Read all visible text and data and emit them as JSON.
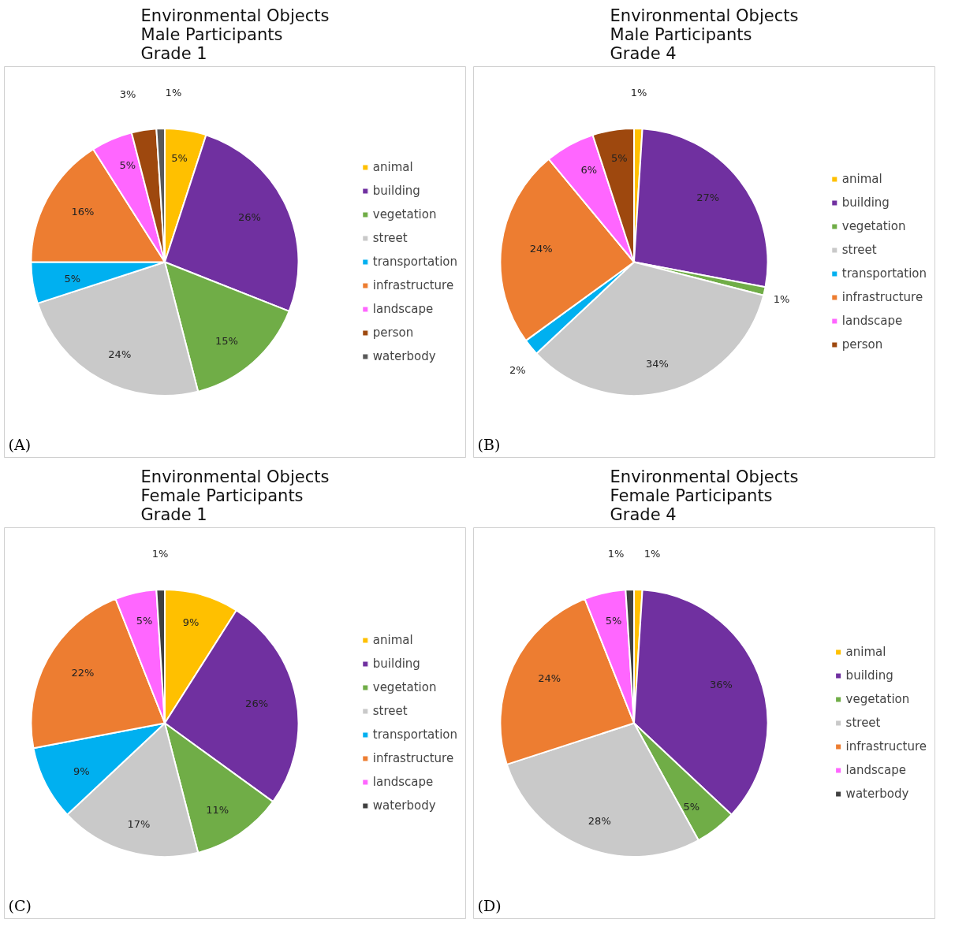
{
  "chart_data": [
    {
      "type": "pie",
      "title": "Environmental Objects\nMale Participants\nGrade 1",
      "categories": [
        "animal",
        "building",
        "vegetation",
        "street",
        "transportation",
        "infrastructure",
        "landscape",
        "person",
        "waterbody"
      ],
      "values": [
        5,
        26,
        15,
        24,
        5,
        16,
        5,
        3,
        1
      ],
      "colors": [
        "#ffc000",
        "#7030a0",
        "#70ad47",
        "#c9c9c9",
        "#00b0f0",
        "#ed7d31",
        "#ff66ff",
        "#9e480e",
        "#595959"
      ],
      "value_labels": [
        "5%",
        "26%",
        "15%",
        "24%",
        "5%",
        "16%",
        "5%",
        "3%",
        "1%"
      ],
      "legend": "right",
      "annotations": [
        "(A)"
      ]
    },
    {
      "type": "pie",
      "title": "Environmental Objects\nMale Participants\nGrade 4",
      "categories": [
        "animal",
        "building",
        "vegetation",
        "street",
        "transportation",
        "infrastructure",
        "landscape",
        "person"
      ],
      "values": [
        1,
        27,
        1,
        34,
        2,
        24,
        6,
        5
      ],
      "colors": [
        "#ffc000",
        "#7030a0",
        "#70ad47",
        "#c9c9c9",
        "#00b0f0",
        "#ed7d31",
        "#ff66ff",
        "#9e480e"
      ],
      "value_labels": [
        "1%",
        "27%",
        "1%",
        "34%",
        "2%",
        "24%",
        "6%",
        "5%"
      ],
      "legend": "right",
      "annotations": [
        "(B)"
      ]
    },
    {
      "type": "pie",
      "title": "Environmental Objects\nFemale Participants\nGrade 1",
      "categories": [
        "animal",
        "building",
        "vegetation",
        "street",
        "transportation",
        "infrastructure",
        "landscape",
        "waterbody"
      ],
      "values": [
        9,
        26,
        11,
        17,
        9,
        22,
        5,
        1
      ],
      "colors": [
        "#ffc000",
        "#7030a0",
        "#70ad47",
        "#c9c9c9",
        "#00b0f0",
        "#ed7d31",
        "#ff66ff",
        "#404040"
      ],
      "value_labels": [
        "9%",
        "26%",
        "11%",
        "17%",
        "9%",
        "22%",
        "5%",
        "1%"
      ],
      "legend": "right",
      "annotations": [
        "(C)"
      ]
    },
    {
      "type": "pie",
      "title": "Environmental Objects\nFemale Participants\nGrade 4",
      "categories": [
        "animal",
        "building",
        "vegetation",
        "street",
        "infrastructure",
        "landscape",
        "waterbody"
      ],
      "values": [
        1,
        36,
        5,
        28,
        24,
        5,
        1
      ],
      "colors": [
        "#ffc000",
        "#7030a0",
        "#70ad47",
        "#c9c9c9",
        "#ed7d31",
        "#ff66ff",
        "#404040"
      ],
      "value_labels": [
        "1%",
        "36%",
        "5%",
        "28%",
        "24%",
        "5%",
        "1%"
      ],
      "legend": "right",
      "annotations": [
        "(D)"
      ]
    }
  ]
}
